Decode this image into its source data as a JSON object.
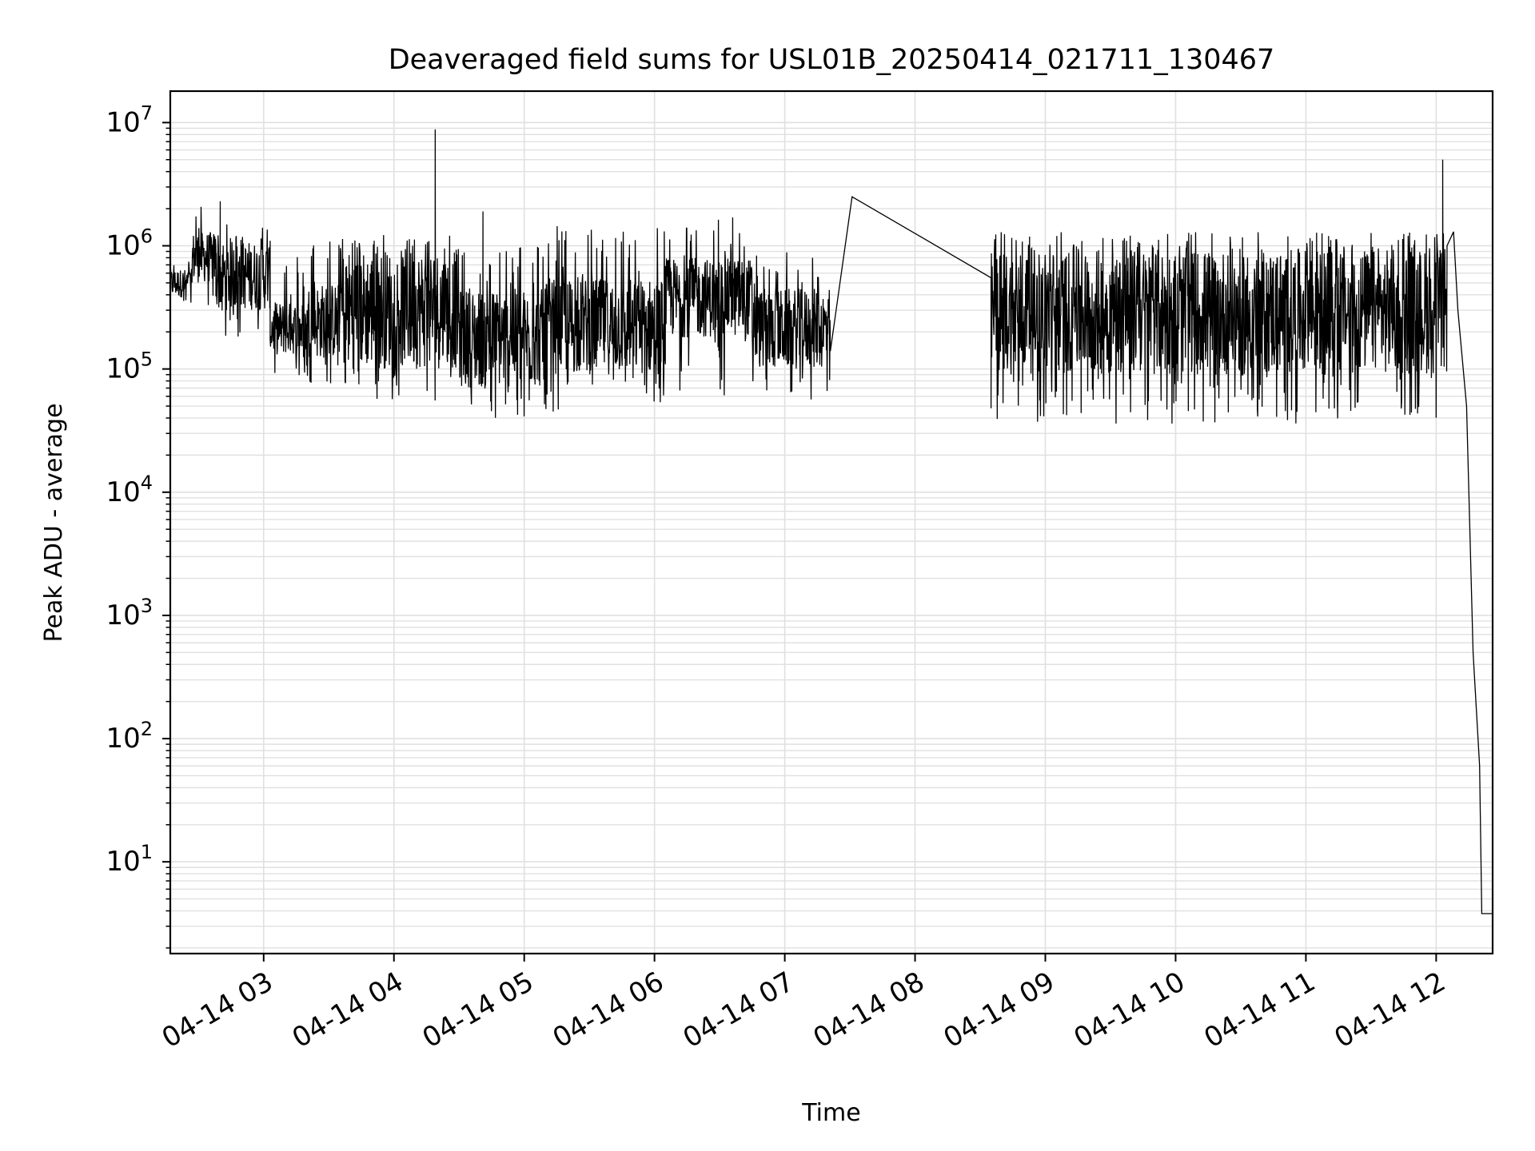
{
  "chart_data": {
    "type": "line",
    "title": "Deaveraged field sums for USL01B_20250414_021711_130467",
    "xlabel": "Time",
    "ylabel": "Peak ADU - average",
    "yscale": "log",
    "grid": true,
    "grid_color": "#e0e0e0",
    "line_color": "#000000",
    "xlim": [
      "2025-04-14 02:17",
      "2025-04-14 12:26"
    ],
    "ylim": [
      1.8,
      18000000
    ],
    "x_ticks": [
      {
        "value": "2025-04-14 03:00",
        "label": "04-14 03"
      },
      {
        "value": "2025-04-14 04:00",
        "label": "04-14 04"
      },
      {
        "value": "2025-04-14 05:00",
        "label": "04-14 05"
      },
      {
        "value": "2025-04-14 06:00",
        "label": "04-14 06"
      },
      {
        "value": "2025-04-14 07:00",
        "label": "04-14 07"
      },
      {
        "value": "2025-04-14 08:00",
        "label": "04-14 08"
      },
      {
        "value": "2025-04-14 09:00",
        "label": "04-14 09"
      },
      {
        "value": "2025-04-14 10:00",
        "label": "04-14 10"
      },
      {
        "value": "2025-04-14 11:00",
        "label": "04-14 11"
      },
      {
        "value": "2025-04-14 12:00",
        "label": "04-14 12"
      }
    ],
    "y_ticks": [
      {
        "value": 10,
        "base": "10",
        "exp": "1"
      },
      {
        "value": 100,
        "base": "10",
        "exp": "2"
      },
      {
        "value": 1000,
        "base": "10",
        "exp": "3"
      },
      {
        "value": 10000,
        "base": "10",
        "exp": "4"
      },
      {
        "value": 100000,
        "base": "10",
        "exp": "5"
      },
      {
        "value": 1000000,
        "base": "10",
        "exp": "6"
      },
      {
        "value": 10000000,
        "base": "10",
        "exp": "7"
      }
    ],
    "series": [
      {
        "noise_bands": [
          {
            "start": "2025-04-14 02:17",
            "end": "2025-04-14 02:27",
            "lo": 380000,
            "hi": 650000,
            "min": 330000,
            "max": 750000
          },
          {
            "start": "2025-04-14 02:27",
            "end": "2025-04-14 02:38",
            "lo": 500000,
            "hi": 1300000,
            "min": 250000,
            "max": 2200000
          },
          {
            "start": "2025-04-14 02:38",
            "end": "2025-04-14 03:03",
            "lo": 300000,
            "hi": 1100000,
            "min": 170000,
            "max": 1500000
          },
          {
            "start": "2025-04-14 03:03",
            "end": "2025-04-14 03:20",
            "lo": 130000,
            "hi": 350000,
            "min": 80000,
            "max": 1000000
          },
          {
            "start": "2025-04-14 03:20",
            "end": "2025-04-14 03:35",
            "lo": 120000,
            "hi": 500000,
            "min": 75000,
            "max": 1200000
          },
          {
            "start": "2025-04-14 03:35",
            "end": "2025-04-14 04:30",
            "lo": 100000,
            "hi": 950000,
            "min": 55000,
            "max": 1250000
          },
          {
            "start": "2025-04-14 04:30",
            "end": "2025-04-14 05:10",
            "lo": 70000,
            "hi": 450000,
            "min": 38000,
            "max": 1100000
          },
          {
            "start": "2025-04-14 05:10",
            "end": "2025-04-14 06:05",
            "lo": 90000,
            "hi": 550000,
            "min": 45000,
            "max": 1500000
          },
          {
            "start": "2025-04-14 06:05",
            "end": "2025-04-14 06:45",
            "lo": 180000,
            "hi": 800000,
            "min": 60000,
            "max": 1700000
          },
          {
            "start": "2025-04-14 06:45",
            "end": "2025-04-14 07:21",
            "lo": 100000,
            "hi": 450000,
            "min": 55000,
            "max": 900000
          },
          {
            "start": "2025-04-14 08:35",
            "end": "2025-04-14 12:05",
            "lo": 90000,
            "hi": 950000,
            "min": 36000,
            "max": 1300000
          }
        ],
        "spikes": [
          {
            "x": "2025-04-14 02:40",
            "y": 2300000
          },
          {
            "x": "2025-04-14 04:19",
            "y": 8800000
          },
          {
            "x": "2025-04-14 04:41",
            "y": 1900000
          },
          {
            "x": "2025-04-14 06:36",
            "y": 1700000
          },
          {
            "x": "2025-04-14 12:03",
            "y": 5000000
          },
          {
            "x": "2025-04-14 12:05",
            "y": 4400000
          }
        ],
        "points": [
          {
            "x": "2025-04-14 07:21",
            "y": 140000
          },
          {
            "x": "2025-04-14 07:31",
            "y": 2500000
          },
          {
            "x": "2025-04-14 08:35",
            "y": 550000
          },
          {
            "x": "2025-04-14 08:35",
            "y": 48000
          },
          {
            "x": "2025-04-14 12:05",
            "y": 1000000
          },
          {
            "x": "2025-04-14 12:08",
            "y": 1300000
          },
          {
            "x": "2025-04-14 12:10",
            "y": 300000
          },
          {
            "x": "2025-04-14 12:14",
            "y": 50000
          },
          {
            "x": "2025-04-14 12:17",
            "y": 500
          },
          {
            "x": "2025-04-14 12:20",
            "y": 60
          },
          {
            "x": "2025-04-14 12:21",
            "y": 3.8
          },
          {
            "x": "2025-04-14 12:26",
            "y": 3.8
          }
        ]
      }
    ]
  }
}
